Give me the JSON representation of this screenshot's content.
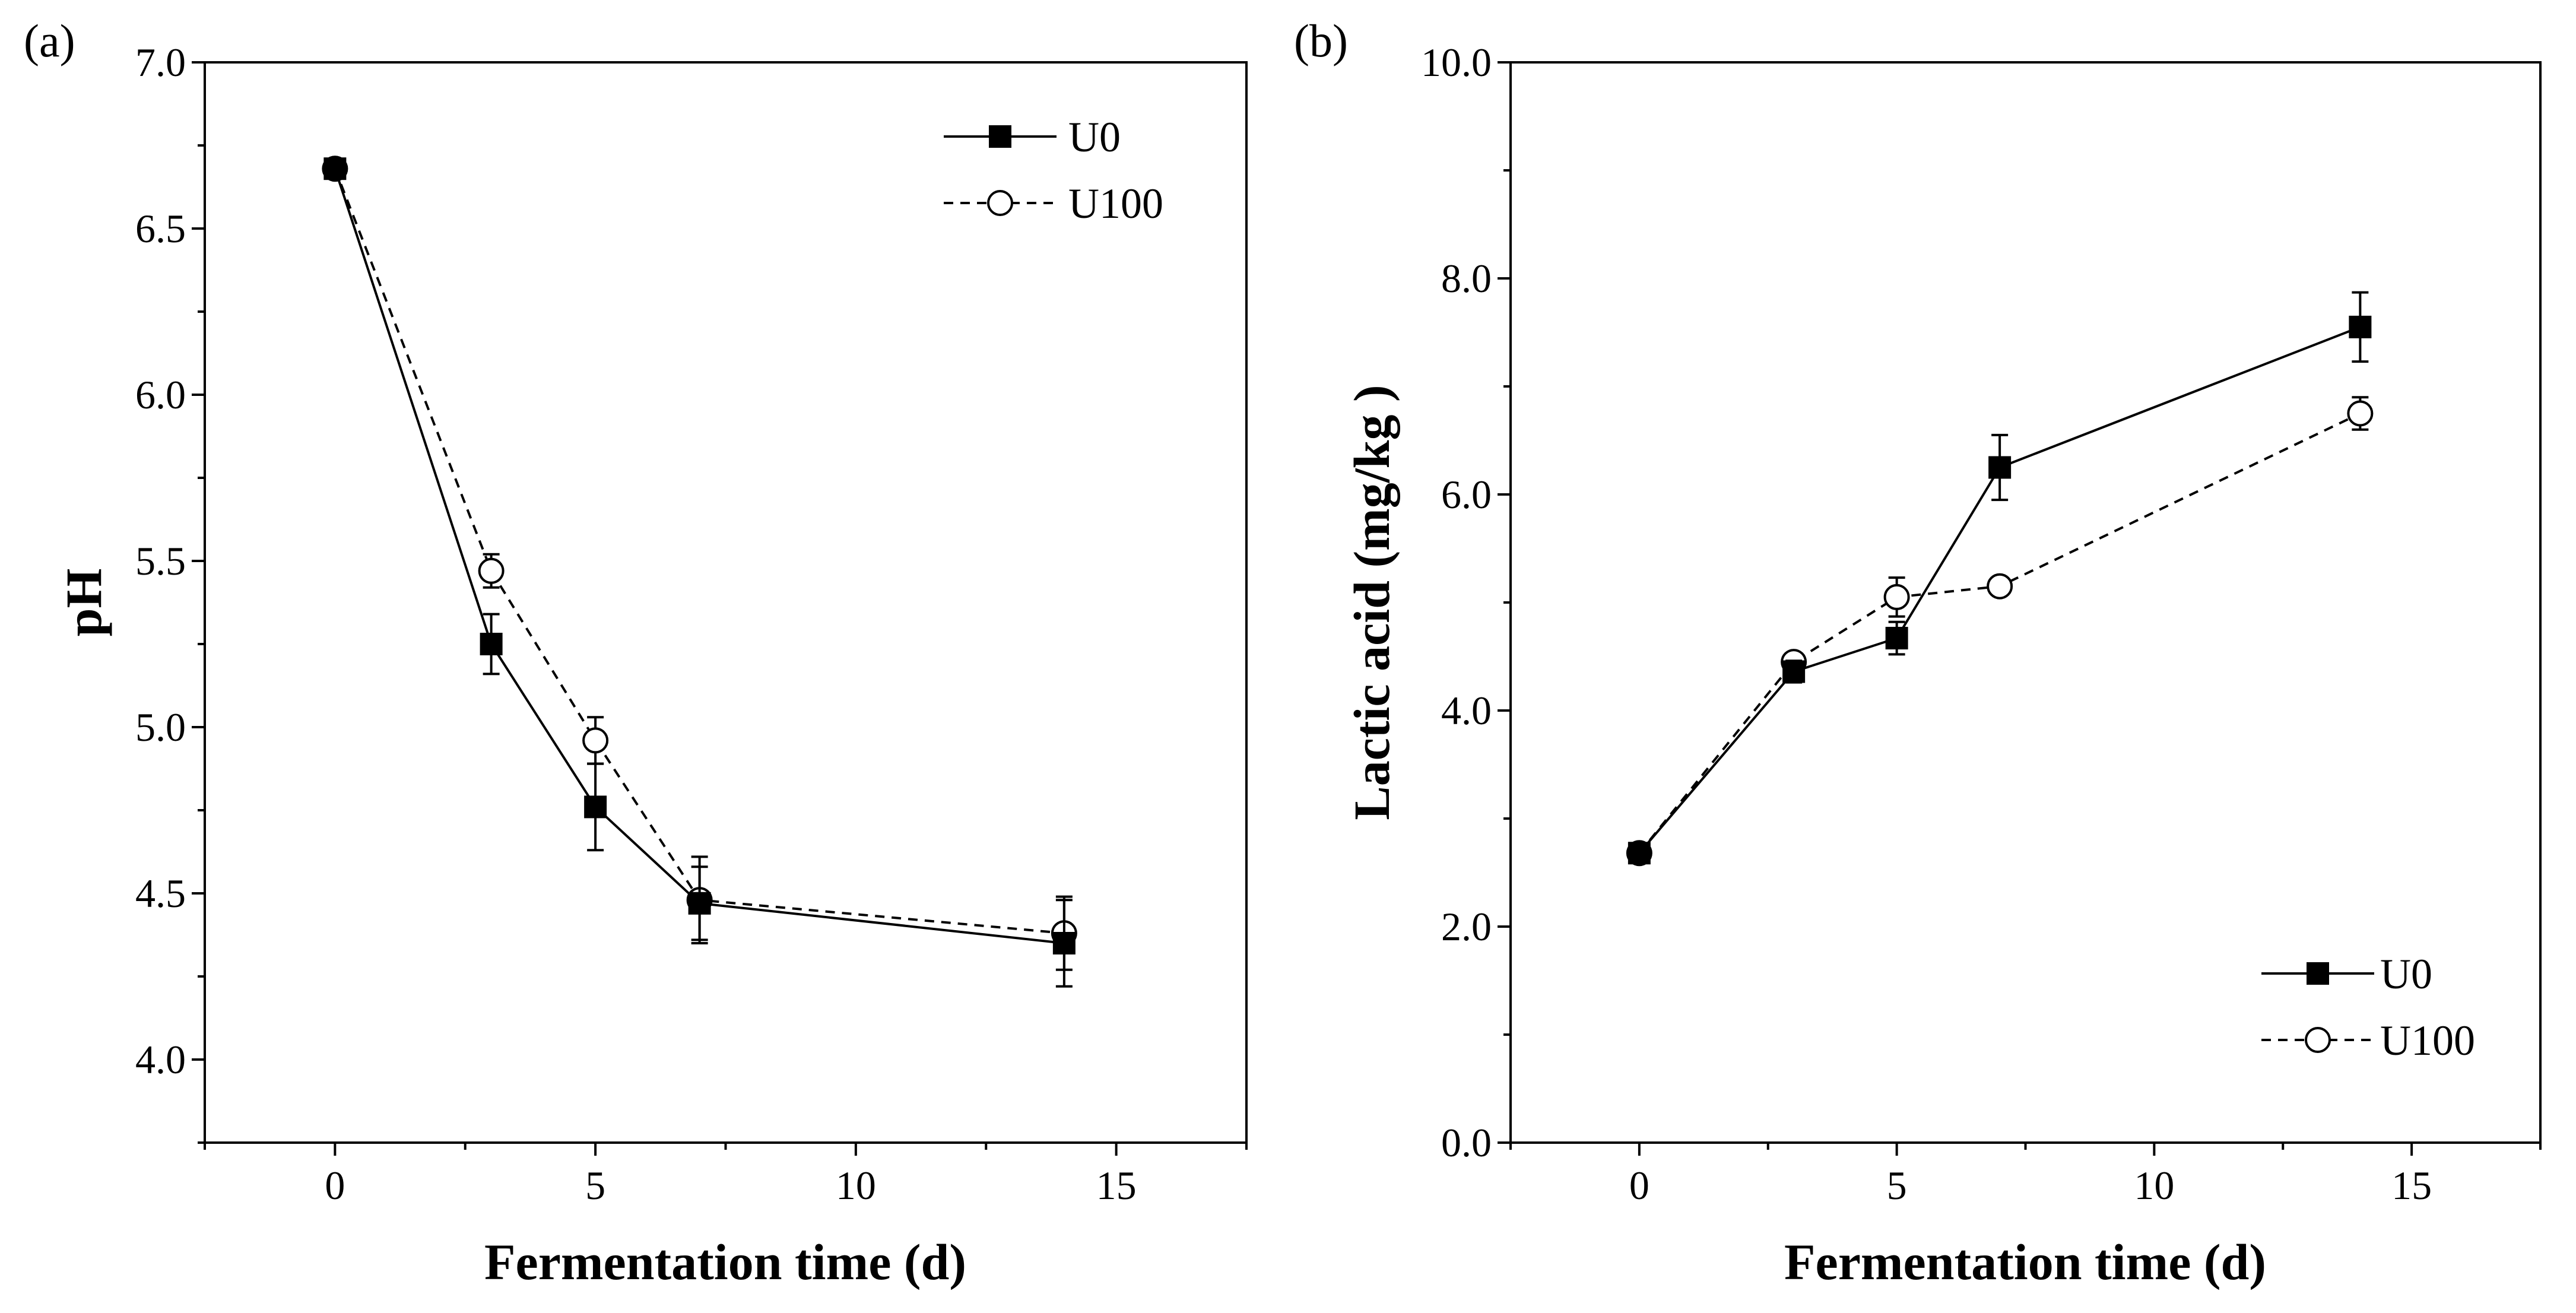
{
  "chart_data": [
    {
      "type": "line",
      "panel_label": "(a)",
      "title": "",
      "xlabel": "Fermentation time (d)",
      "ylabel": "pH",
      "xlim": [
        -2.5,
        17.5
      ],
      "ylim": [
        3.75,
        7.0
      ],
      "xticks": [
        0,
        5,
        10,
        15
      ],
      "xtick_labels": [
        "0",
        "5",
        "10",
        "15"
      ],
      "yticks": [
        4.0,
        4.5,
        5.0,
        5.5,
        6.0,
        6.5,
        7.0
      ],
      "ytick_labels": [
        "4.0",
        "4.5",
        "5.0",
        "5.5",
        "6.0",
        "6.5",
        "7.0"
      ],
      "grid": false,
      "legend_position": "top-right",
      "x": [
        0,
        3,
        5,
        7,
        14
      ],
      "series": [
        {
          "name": "U0",
          "values": [
            6.68,
            5.25,
            4.76,
            4.47,
            4.35
          ],
          "errors": [
            0.02,
            0.09,
            0.13,
            0.11,
            0.13
          ],
          "marker": "filled-square",
          "line": "solid"
        },
        {
          "name": "U100",
          "values": [
            6.68,
            5.47,
            4.96,
            4.48,
            4.38
          ],
          "errors": [
            0.02,
            0.05,
            0.07,
            0.13,
            0.11
          ],
          "marker": "open-circle",
          "line": "dashed"
        }
      ]
    },
    {
      "type": "line",
      "panel_label": "(b)",
      "title": "",
      "xlabel": "Fermentation time (d)",
      "ylabel": "Lactic acid (mg/kg )",
      "xlim": [
        -2.5,
        17.5
      ],
      "ylim": [
        0.0,
        10.0
      ],
      "xticks": [
        0,
        5,
        10,
        15
      ],
      "xtick_labels": [
        "0",
        "5",
        "10",
        "15"
      ],
      "yticks": [
        0.0,
        2.0,
        4.0,
        6.0,
        8.0,
        10.0
      ],
      "ytick_labels": [
        "0.0",
        "2.0",
        "4.0",
        "6.0",
        "8.0",
        "10.0"
      ],
      "grid": false,
      "legend_position": "bottom-right",
      "x": [
        0,
        3,
        5,
        7,
        14
      ],
      "series": [
        {
          "name": "U0",
          "values": [
            2.68,
            4.36,
            4.67,
            6.25,
            7.55
          ],
          "errors": [
            0.08,
            0.1,
            0.15,
            0.3,
            0.32
          ],
          "marker": "filled-square",
          "line": "solid"
        },
        {
          "name": "U100",
          "values": [
            2.68,
            4.45,
            5.05,
            5.15,
            6.75
          ],
          "errors": [
            0.08,
            0.08,
            0.18,
            0.07,
            0.15
          ],
          "marker": "open-circle",
          "line": "dashed"
        }
      ]
    }
  ]
}
